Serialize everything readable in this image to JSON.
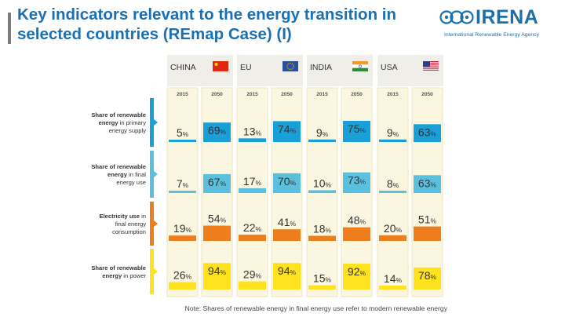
{
  "title": "Key indicators relevant to the energy transition in selected countries (REmap Case) (I)",
  "logo": {
    "name": "IRENA",
    "subtitle": "International Renewable Energy Agency"
  },
  "note": "Note: Shares of renewable energy in final energy use refer to modern renewable energy",
  "colors": {
    "title": "#1b6fb3",
    "header_bg": "#efeee9",
    "column_bg": "#fbf6df",
    "column_border": "#ece4c0",
    "rows": [
      "#1aa0d8",
      "#5bc0de",
      "#ee7d1c",
      "#fde21d"
    ]
  },
  "chart_data": {
    "type": "bar",
    "countries": [
      "CHINA",
      "EU",
      "INDIA",
      "USA"
    ],
    "years": [
      "2015",
      "2050"
    ],
    "unit": "%",
    "rows": [
      {
        "label_parts": [
          {
            "text": "Share of renewable energy",
            "bold": true
          },
          {
            "text": " in primary energy supply",
            "bold": false
          }
        ],
        "values": [
          [
            5,
            69
          ],
          [
            13,
            74
          ],
          [
            9,
            75
          ],
          [
            9,
            63
          ]
        ]
      },
      {
        "label_parts": [
          {
            "text": "Share of renewable energy",
            "bold": true
          },
          {
            "text": " in final energy use",
            "bold": false
          }
        ],
        "values": [
          [
            7,
            67
          ],
          [
            17,
            70
          ],
          [
            10,
            73
          ],
          [
            8,
            63
          ]
        ]
      },
      {
        "label_parts": [
          {
            "text": "Electricity use",
            "bold": true
          },
          {
            "text": " in final energy consumption",
            "bold": false
          }
        ],
        "values": [
          [
            19,
            54
          ],
          [
            22,
            41
          ],
          [
            18,
            48
          ],
          [
            20,
            51
          ]
        ]
      },
      {
        "label_parts": [
          {
            "text": "Share of renewable energy",
            "bold": true
          },
          {
            "text": " in power",
            "bold": false
          }
        ],
        "values": [
          [
            26,
            94
          ],
          [
            29,
            94
          ],
          [
            15,
            92
          ],
          [
            14,
            78
          ]
        ]
      }
    ]
  }
}
